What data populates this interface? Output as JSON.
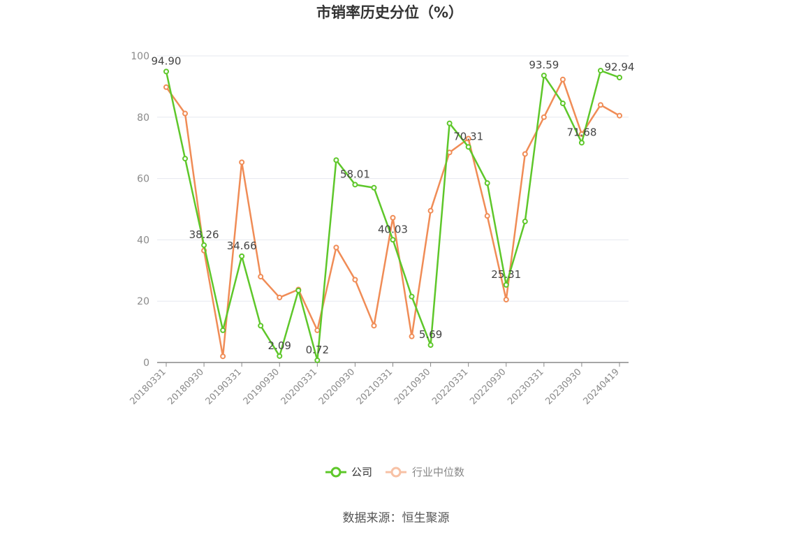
{
  "chart_data": {
    "type": "line",
    "title": "市销率历史分位（%）",
    "xlabel": "",
    "ylabel": "",
    "ylim": [
      0,
      100
    ],
    "yticks": [
      0,
      20,
      40,
      60,
      80,
      100
    ],
    "grid": true,
    "legend_position": "bottom",
    "x": [
      "20180331",
      "20180630",
      "20180930",
      "20181231",
      "20190331",
      "20190630",
      "20190930",
      "20191231",
      "20200331",
      "20200630",
      "20200930",
      "20201231",
      "20210331",
      "20210630",
      "20210930",
      "20211231",
      "20220331",
      "20220630",
      "20220930",
      "20221231",
      "20230331",
      "20230630",
      "20230930",
      "20231231",
      "20240419"
    ],
    "xtick_labels": [
      "20180331",
      "20180930",
      "20190331",
      "20190930",
      "20200331",
      "20200930",
      "20210331",
      "20210930",
      "20220331",
      "20220930",
      "20230331",
      "20230930",
      "20240419"
    ],
    "series": [
      {
        "name": "公司",
        "color": "#5ec72a",
        "values": [
          94.9,
          66.5,
          38.26,
          10.5,
          34.66,
          12.0,
          2.09,
          23.5,
          0.72,
          66.0,
          58.01,
          57.0,
          40.03,
          21.5,
          5.69,
          78.0,
          70.31,
          58.5,
          25.31,
          46.0,
          93.59,
          84.5,
          71.68,
          95.2,
          92.94
        ],
        "data_labels": {
          "0": "94.90",
          "2": "38.26",
          "4": "34.66",
          "6": "2.09",
          "8": "0.72",
          "10": "58.01",
          "12": "40.03",
          "14": "5.69",
          "16": "70.31",
          "18": "25.31",
          "20": "93.59",
          "22": "71.68",
          "24": "92.94"
        }
      },
      {
        "name": "行业中位数",
        "color": "#f08c56",
        "values": [
          89.8,
          81.2,
          36.5,
          2.0,
          65.3,
          28.0,
          21.2,
          23.8,
          10.5,
          37.5,
          27.0,
          12.0,
          47.2,
          8.5,
          49.5,
          68.5,
          73.0,
          47.8,
          20.5,
          68.0,
          80.0,
          92.3,
          74.5,
          84.0,
          80.5
        ]
      }
    ]
  },
  "legend": {
    "company": "公司",
    "industry": "行业中位数"
  },
  "source": "数据来源：恒生聚源"
}
